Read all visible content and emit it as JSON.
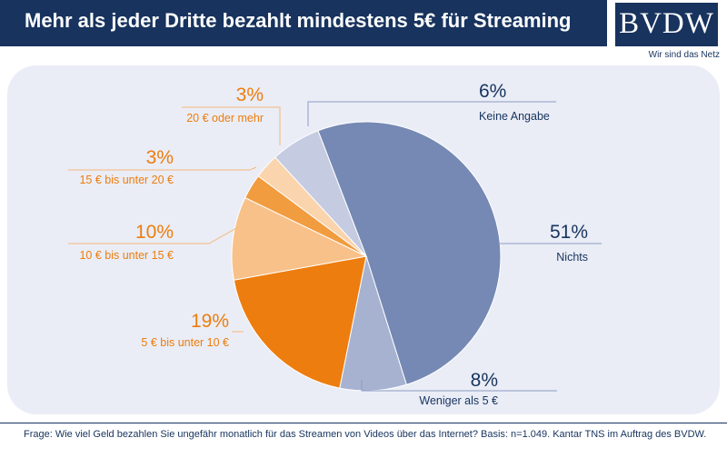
{
  "header": {
    "title": "Mehr als jeder Dritte bezahlt mindestens 5€ für Streaming"
  },
  "logo": {
    "text": "BVDW",
    "tagline": "Wir sind das Netz"
  },
  "footnote": "Frage: Wie viel Geld bezahlen Sie ungefähr monatlich für das Streamen von Videos über das Internet? Basis: n=1.049. Kantar TNS im Auftrag des BVDW.",
  "chart_data": {
    "type": "pie",
    "slices": [
      {
        "label": "Nichts",
        "value": 51,
        "value_label": "51%",
        "color": "#7589b4",
        "text_color": "#17335e"
      },
      {
        "label": "Weniger als 5 €",
        "value": 8,
        "value_label": "8%",
        "color": "#a7b2d1",
        "text_color": "#17335e"
      },
      {
        "label": "5 € bis unter 10 €",
        "value": 19,
        "value_label": "19%",
        "color": "#ed7d0e",
        "text_color": "#ed7d0e"
      },
      {
        "label": "10 € bis unter 15 €",
        "value": 10,
        "value_label": "10%",
        "color": "#f8c189",
        "text_color": "#ed7d0e"
      },
      {
        "label": "15 € bis unter 20 €",
        "value": 3,
        "value_label": "3%",
        "color": "#f19c3f",
        "text_color": "#ed7d0e"
      },
      {
        "label": "20 € oder mehr",
        "value": 3,
        "value_label": "3%",
        "color": "#fad4ad",
        "text_color": "#ed7d0e"
      },
      {
        "label": "Keine Angabe",
        "value": 6,
        "value_label": "6%",
        "color": "#c5cbe1",
        "text_color": "#17335e"
      }
    ]
  }
}
